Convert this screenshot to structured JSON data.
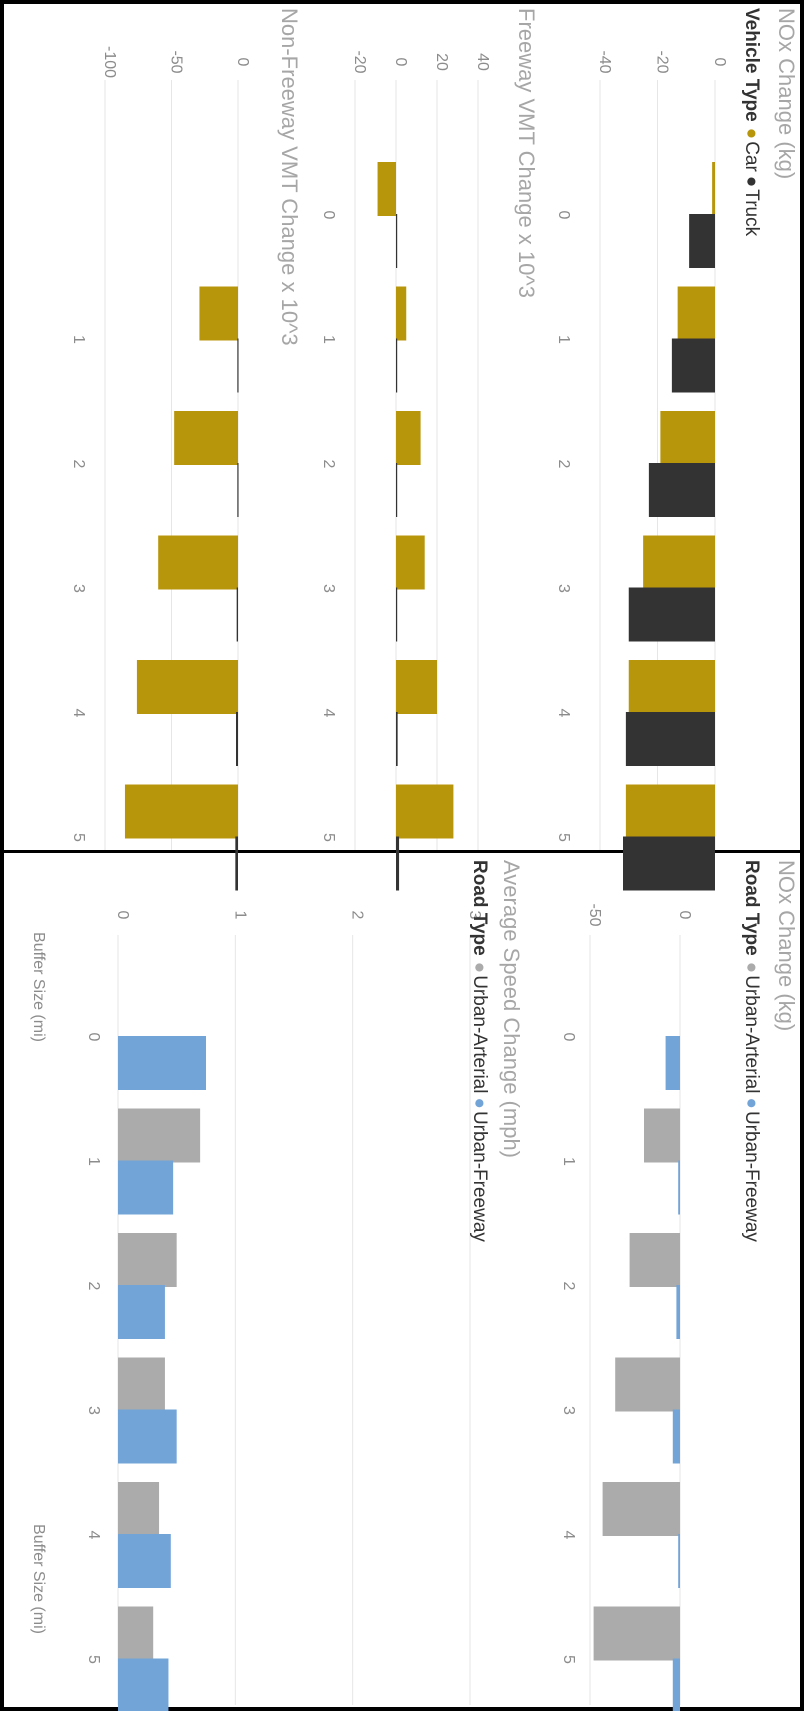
{
  "colors": {
    "car": "#B8960C",
    "truck": "#333333",
    "urban_arterial": "#ABABAB",
    "urban_freeway": "#72A4D8",
    "grid": "#E6E6E6",
    "title": "#A6A6A6",
    "tick": "#8C8C8C"
  },
  "left_panel": {
    "legend": {
      "title": "Vehicle Type",
      "items": [
        {
          "label": "Car",
          "color": "#B8960C"
        },
        {
          "label": "Truck",
          "color": "#333333"
        }
      ]
    },
    "xlabel": "Buffer Size (mi)"
  },
  "right_panel": {
    "legend": {
      "title": "Road Type",
      "items": [
        {
          "label": "Urban-Arterial",
          "color": "#ABABAB"
        },
        {
          "label": "Urban-Freeway",
          "color": "#72A4D8"
        }
      ]
    },
    "xlabel": "Buffer Size (mi)"
  },
  "chart_data": [
    {
      "type": "bar",
      "title": "NOx Change (kg)",
      "categories": [
        "0",
        "1",
        "2",
        "3",
        "4",
        "5"
      ],
      "series": [
        {
          "name": "Car",
          "values": [
            -1,
            -13,
            -19,
            -25,
            -30,
            -31
          ]
        },
        {
          "name": "Truck",
          "values": [
            -9,
            -15,
            -23,
            -30,
            -31,
            -32
          ]
        }
      ],
      "ylim": [
        -40,
        0
      ],
      "yticks": [
        0,
        -20,
        -40
      ],
      "xlabel": "",
      "ylabel": "",
      "grid": true
    },
    {
      "type": "bar",
      "title": "Freeway VMT Change x 10^3",
      "categories": [
        "0",
        "1",
        "2",
        "3",
        "4",
        "5"
      ],
      "series": [
        {
          "name": "Car",
          "values": [
            -9,
            5,
            12,
            14,
            20,
            28
          ]
        },
        {
          "name": "Truck",
          "values": [
            0.5,
            0.3,
            0.3,
            0.5,
            0.8,
            1.5
          ]
        }
      ],
      "ylim": [
        -20,
        40
      ],
      "yticks": [
        40,
        20,
        0,
        -20
      ],
      "xlabel": "",
      "ylabel": "",
      "grid": true
    },
    {
      "type": "bar",
      "title": "Non-Freeway VMT Change x 10^3",
      "categories": [
        "1",
        "2",
        "3",
        "4",
        "5"
      ],
      "series": [
        {
          "name": "Car",
          "values": [
            -29,
            -48,
            -60,
            -76,
            -85
          ]
        },
        {
          "name": "Truck",
          "values": [
            -0.5,
            -0.5,
            -1,
            -1.5,
            -2
          ]
        }
      ],
      "ylim": [
        -100,
        0
      ],
      "yticks": [
        0,
        -50,
        -100
      ],
      "xlabel": "Buffer Size (mi)",
      "ylabel": "",
      "grid": true
    },
    {
      "type": "bar",
      "title": "NOx Change (kg)",
      "categories": [
        "0",
        "1",
        "2",
        "3",
        "4",
        "5"
      ],
      "series": [
        {
          "name": "Urban-Arterial",
          "values": [
            0,
            -20,
            -28,
            -36,
            -43,
            -48
          ]
        },
        {
          "name": "Urban-Freeway",
          "values": [
            -8,
            -1,
            -2,
            -4,
            -1,
            -4
          ]
        }
      ],
      "ylim": [
        -50,
        0
      ],
      "yticks": [
        0,
        -50
      ],
      "xlabel": "",
      "ylabel": "",
      "grid": true
    },
    {
      "type": "bar",
      "title": "Average Speed Change (mph)",
      "categories": [
        "0",
        "1",
        "2",
        "3",
        "4",
        "5"
      ],
      "series": [
        {
          "name": "Urban-Arterial",
          "values": [
            0,
            0.7,
            0.5,
            0.4,
            0.35,
            0.3
          ]
        },
        {
          "name": "Urban-Freeway",
          "values": [
            0.75,
            0.47,
            0.4,
            0.5,
            0.45,
            0.43
          ]
        }
      ],
      "ylim": [
        0,
        3
      ],
      "yticks": [
        3,
        2,
        1,
        0
      ],
      "xlabel": "Buffer Size (mi)",
      "ylabel": "",
      "grid": true
    }
  ]
}
